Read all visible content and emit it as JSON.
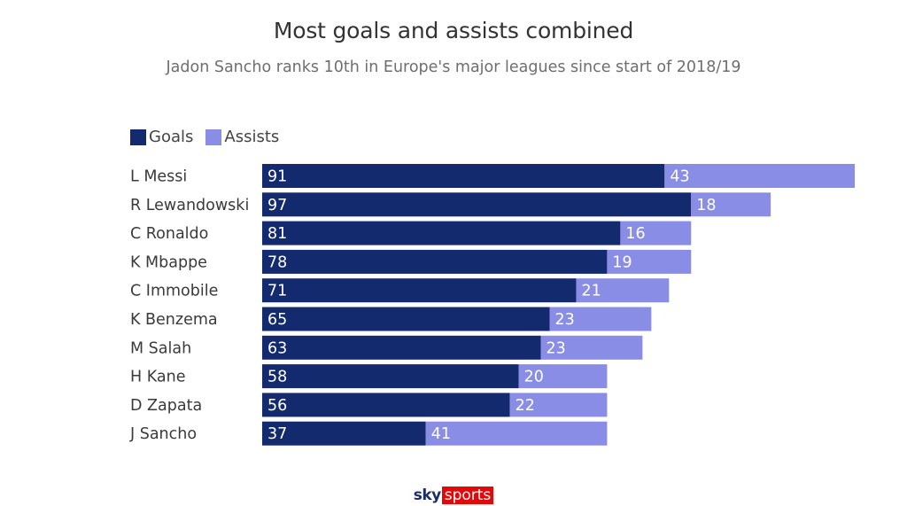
{
  "chart_data": {
    "type": "bar",
    "orientation": "horizontal",
    "stacked": true,
    "title": "Most goals and assists combined",
    "subtitle": "Jadon Sancho ranks 10th in Europe's major leagues since start of 2018/19",
    "categories": [
      "L Messi",
      "R Lewandowski",
      "C Ronaldo",
      "K Mbappe",
      "C Immobile",
      "K Benzema",
      "M Salah",
      "H Kane",
      "D Zapata",
      "J Sancho"
    ],
    "series": [
      {
        "name": "Goals",
        "color": "#142a6e",
        "values": [
          91,
          97,
          81,
          78,
          71,
          65,
          63,
          58,
          56,
          37
        ]
      },
      {
        "name": "Assists",
        "color": "#8a8de6",
        "values": [
          43,
          18,
          16,
          19,
          21,
          23,
          23,
          20,
          22,
          41
        ]
      }
    ],
    "xlim": [
      0,
      134
    ],
    "grid": false,
    "legend": "top-left"
  },
  "branding": {
    "sky": "sky",
    "sports": "sports"
  }
}
